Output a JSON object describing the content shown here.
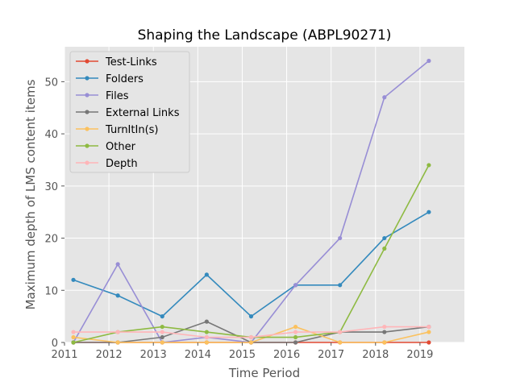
{
  "chart_data": {
    "type": "line",
    "title": "Shaping the Landscape (ABPL90271)",
    "xlabel": "Time Period",
    "ylabel": "Maximum depth of LMS content items",
    "xlim": [
      2011,
      2020
    ],
    "ylim": [
      0,
      56.7
    ],
    "grid": true,
    "legend_position": "top-left",
    "x_ticks": [
      "2011",
      "2012",
      "2013",
      "2014",
      "2015",
      "2016",
      "2017",
      "2018",
      "2019"
    ],
    "y_ticks": [
      "0",
      "10",
      "20",
      "30",
      "40",
      "50"
    ],
    "x": [
      2011.2,
      2012.2,
      2013.2,
      2014.2,
      2015.2,
      2016.2,
      2017.2,
      2018.2,
      2019.2
    ],
    "series": [
      {
        "name": "Test-Links",
        "color": "#E24A33",
        "values": [
          0,
          0,
          0,
          0,
          0,
          0,
          0,
          0,
          0
        ]
      },
      {
        "name": "Folders",
        "color": "#348ABD",
        "values": [
          12,
          9,
          5,
          13,
          5,
          11,
          11,
          20,
          25
        ]
      },
      {
        "name": "Files",
        "color": "#988ED5",
        "values": [
          0,
          15,
          0,
          1,
          0,
          11,
          20,
          47,
          54
        ]
      },
      {
        "name": "External Links",
        "color": "#777777",
        "values": [
          0,
          0,
          1,
          4,
          0,
          0,
          2,
          2,
          3
        ]
      },
      {
        "name": "TurnItIn(s)",
        "color": "#FBC15E",
        "values": [
          1,
          0,
          0,
          0,
          0,
          3,
          0,
          0,
          2
        ]
      },
      {
        "name": "Other",
        "color": "#8EBA42",
        "values": [
          0,
          2,
          3,
          2,
          1,
          1,
          2,
          18,
          34
        ]
      },
      {
        "name": "Depth",
        "color": "#FFB5B8",
        "values": [
          2,
          2,
          2,
          1,
          1,
          2,
          2,
          3,
          3
        ]
      }
    ]
  }
}
